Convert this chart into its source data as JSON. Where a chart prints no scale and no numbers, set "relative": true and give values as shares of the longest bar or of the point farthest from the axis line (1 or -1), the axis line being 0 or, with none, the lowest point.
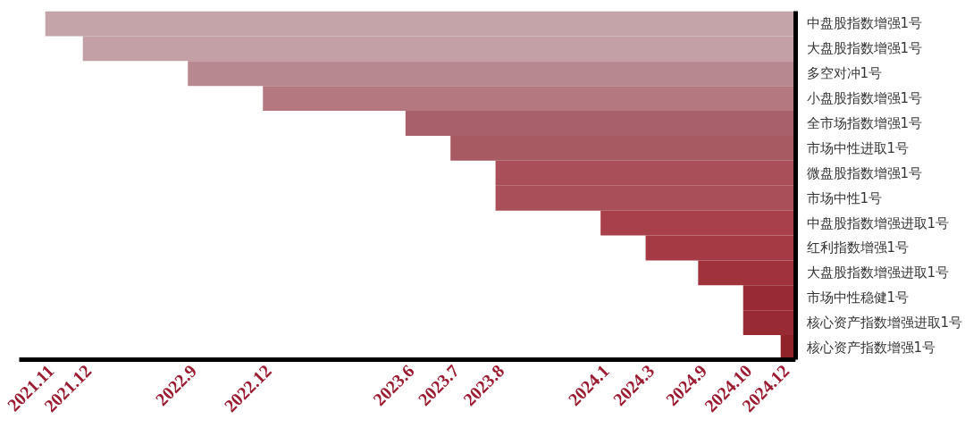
{
  "chart_data": {
    "type": "bar",
    "orientation": "horizontal",
    "relative": true,
    "categories": [
      "中盘股指数增强1号",
      "大盘股指数增强1号",
      "多空对冲1号",
      "小盘股指数增强1号",
      "全市场指数增强1号",
      "市场中性进取1号",
      "微盘股指数增强1号",
      "市场中性1号",
      "中盘股指数增强进取1号",
      "红利指数增强1号",
      "大盘股指数增强进取1号",
      "市场中性稳健1号",
      "核心资产指数增强进取1号",
      "核心资产指数增强1号"
    ],
    "values": [
      -1,
      -0.95,
      -0.81,
      -0.71,
      -0.52,
      -0.46,
      -0.4,
      -0.4,
      -0.26,
      -0.2,
      -0.13,
      -0.07,
      -0.07,
      -0.02
    ],
    "colors": [
      "#c4a4a8",
      "#c2a0a5",
      "#b88890",
      "#b47880",
      "#a8606a",
      "#a85a63",
      "#a94f59",
      "#a94f59",
      "#a8404b",
      "#a53a44",
      "#a0323c",
      "#982a33",
      "#982a33",
      "#902229"
    ],
    "annotations": [
      "2021.11",
      "2021.12",
      "2022.9",
      "2022.12",
      "2023.6",
      "2023.7",
      "2023.8",
      "2024.1",
      "2024.3",
      "2024.9",
      "2024.10",
      "2024.12"
    ]
  }
}
